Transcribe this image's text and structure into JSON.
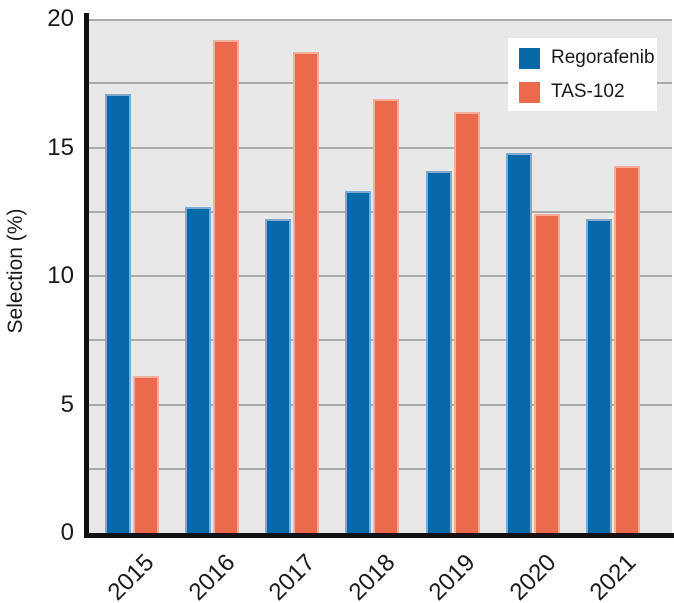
{
  "chart_data": {
    "type": "bar",
    "title": "",
    "xlabel": "",
    "ylabel": "Selection (%)",
    "categories": [
      "2015",
      "2016",
      "2017",
      "2018",
      "2019",
      "2020",
      "2021"
    ],
    "series": [
      {
        "name": "Regorafenib",
        "color": "#0869A9",
        "edge_color": "#7FA9CF",
        "values": [
          17.1,
          12.7,
          12.2,
          13.3,
          14.1,
          14.8,
          12.2
        ]
      },
      {
        "name": "TAS-102",
        "color": "#EC6A4C",
        "edge_color": "#F4AE9B",
        "values": [
          6.1,
          19.2,
          18.7,
          16.9,
          16.4,
          12.4,
          14.3
        ]
      }
    ],
    "ylim": [
      0,
      20
    ],
    "yticks": [
      0,
      5,
      10,
      15,
      20
    ],
    "grid_interval": 2.5,
    "grid": true,
    "legend_position": "upper right",
    "plot_background": "#E8E8E8",
    "grid_color": "#ABABAB",
    "axis_color": "#111111",
    "text_color": "#1a1a1a"
  },
  "legend": {
    "items": [
      {
        "label": "Regorafenib",
        "color": "#0869A9"
      },
      {
        "label": "TAS-102",
        "color": "#EC6A4C"
      }
    ]
  }
}
